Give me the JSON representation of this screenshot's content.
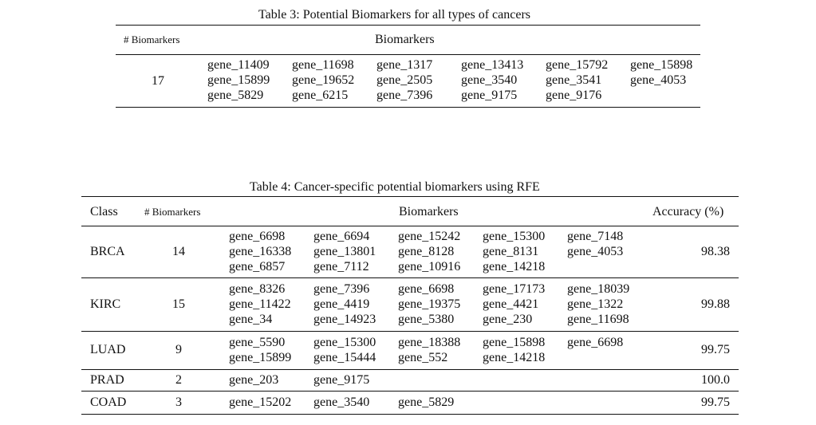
{
  "table3": {
    "caption": "Table 3: Potential Biomarkers for all types of cancers",
    "headers": [
      "# Biomarkers",
      "Biomarkers"
    ],
    "count": "17",
    "genes": [
      "gene_11409",
      "gene_11698",
      "gene_1317",
      "gene_13413",
      "gene_15792",
      "gene_15898",
      "gene_15899",
      "gene_19652",
      "gene_2505",
      "gene_3540",
      "gene_3541",
      "gene_4053",
      "gene_5829",
      "gene_6215",
      "gene_7396",
      "gene_9175",
      "gene_9176"
    ]
  },
  "table4": {
    "caption": "Table 4: Cancer-specific potential biomarkers using RFE",
    "headers": [
      "Class",
      "# Biomarkers",
      "Biomarkers",
      "Accuracy (%)"
    ],
    "rows": [
      {
        "class": "BRCA",
        "count": "14",
        "accuracy": "98.38",
        "genes": [
          "gene_6698",
          "gene_6694",
          "gene_15242",
          "gene_15300",
          "gene_7148",
          "gene_16338",
          "gene_13801",
          "gene_8128",
          "gene_8131",
          "gene_4053",
          "gene_6857",
          "gene_7112",
          "gene_10916",
          "gene_14218"
        ]
      },
      {
        "class": "KIRC",
        "count": "15",
        "accuracy": "99.88",
        "genes": [
          "gene_8326",
          "gene_7396",
          "gene_6698",
          "gene_17173",
          "gene_18039",
          "gene_11422",
          "gene_4419",
          "gene_19375",
          "gene_4421",
          "gene_1322",
          "gene_34",
          "gene_14923",
          "gene_5380",
          "gene_230",
          "gene_11698"
        ]
      },
      {
        "class": "LUAD",
        "count": "9",
        "accuracy": "99.75",
        "genes": [
          "gene_5590",
          "gene_15300",
          "gene_18388",
          "gene_15898",
          "gene_6698",
          "gene_15899",
          "gene_15444",
          "gene_552",
          "gene_14218"
        ]
      },
      {
        "class": "PRAD",
        "count": "2",
        "accuracy": "100.0",
        "genes": [
          "gene_203",
          "gene_9175"
        ]
      },
      {
        "class": "COAD",
        "count": "3",
        "accuracy": "99.75",
        "genes": [
          "gene_15202",
          "gene_3540",
          "gene_5829"
        ]
      }
    ]
  }
}
